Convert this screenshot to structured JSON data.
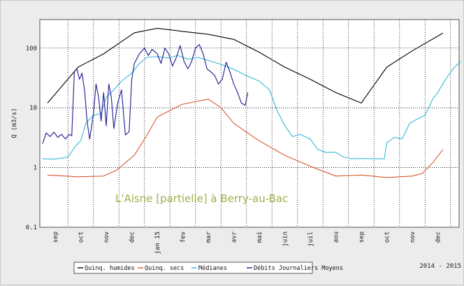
{
  "chart_data": {
    "type": "line",
    "title": "L'Aisne [partielle] à Berry-au-Bac",
    "ylabel": "Q (m3/s)",
    "xlabel": "",
    "yscale": "log",
    "ylim": [
      0.1,
      300
    ],
    "yticks": [
      "0.1",
      "1",
      "10",
      "100"
    ],
    "x_months": [
      "sep",
      "oct",
      "nov",
      "dec",
      "jan 15",
      "fev",
      "mar",
      "avr",
      "mai",
      "juin",
      "juil",
      "aou",
      "sep",
      "oct",
      "nov",
      "dec"
    ],
    "grid": true,
    "legend_position": "bottom-left",
    "season_label": "2014 - 2015",
    "series": [
      {
        "name": "Quinq. humides",
        "color": "#000000",
        "points": [
          [
            -0.3,
            12
          ],
          [
            0.9,
            48
          ],
          [
            1.9,
            80
          ],
          [
            3.1,
            180
          ],
          [
            4.0,
            215
          ],
          [
            5.0,
            190
          ],
          [
            6.0,
            170
          ],
          [
            7.0,
            140
          ],
          [
            8.0,
            85
          ],
          [
            9.0,
            48
          ],
          [
            10.0,
            30
          ],
          [
            11.0,
            18
          ],
          [
            12.0,
            12
          ],
          [
            13.0,
            48
          ],
          [
            14.0,
            90
          ],
          [
            15.2,
            178
          ]
        ]
      },
      {
        "name": "Quinq. secs",
        "color": "#d8582e",
        "points": [
          [
            -0.3,
            0.75
          ],
          [
            0.9,
            0.7
          ],
          [
            1.9,
            0.72
          ],
          [
            2.4,
            0.9
          ],
          [
            3.1,
            1.6
          ],
          [
            3.6,
            3.5
          ],
          [
            4.0,
            7.0
          ],
          [
            4.6,
            9.5
          ],
          [
            5.0,
            11.5
          ],
          [
            6.0,
            14.0
          ],
          [
            6.5,
            10
          ],
          [
            7.0,
            5.5
          ],
          [
            8.0,
            2.8
          ],
          [
            9.0,
            1.6
          ],
          [
            10.0,
            1.05
          ],
          [
            11.0,
            0.72
          ],
          [
            12.0,
            0.75
          ],
          [
            13.0,
            0.68
          ],
          [
            14.0,
            0.72
          ],
          [
            14.4,
            0.8
          ],
          [
            14.8,
            1.2
          ],
          [
            15.2,
            2.0
          ]
        ]
      },
      {
        "name": "Médianes",
        "color": "#35b8d8",
        "points": [
          [
            -0.5,
            1.4
          ],
          [
            0.0,
            1.38
          ],
          [
            0.5,
            1.5
          ],
          [
            0.8,
            2.3
          ],
          [
            1.0,
            2.8
          ],
          [
            1.2,
            5.5
          ],
          [
            1.5,
            7.5
          ],
          [
            1.8,
            8.0
          ],
          [
            2.0,
            15
          ],
          [
            2.3,
            20
          ],
          [
            2.6,
            28
          ],
          [
            3.0,
            38
          ],
          [
            3.3,
            55
          ],
          [
            3.6,
            70
          ],
          [
            4.0,
            72
          ],
          [
            4.4,
            68
          ],
          [
            4.8,
            75
          ],
          [
            5.2,
            65
          ],
          [
            5.6,
            70
          ],
          [
            6.0,
            62
          ],
          [
            6.4,
            55
          ],
          [
            6.8,
            48
          ],
          [
            7.2,
            40
          ],
          [
            7.6,
            33
          ],
          [
            8.0,
            28
          ],
          [
            8.4,
            20
          ],
          [
            8.7,
            9
          ],
          [
            9.0,
            5
          ],
          [
            9.3,
            3.3
          ],
          [
            9.6,
            3.6
          ],
          [
            10.0,
            3.0
          ],
          [
            10.3,
            2.0
          ],
          [
            10.6,
            1.8
          ],
          [
            11.0,
            1.8
          ],
          [
            11.3,
            1.5
          ],
          [
            11.6,
            1.4
          ],
          [
            12.0,
            1.42
          ],
          [
            12.5,
            1.4
          ],
          [
            12.9,
            1.4
          ],
          [
            13.0,
            2.6
          ],
          [
            13.3,
            3.2
          ],
          [
            13.6,
            3.0
          ],
          [
            13.9,
            5.5
          ],
          [
            14.2,
            6.5
          ],
          [
            14.5,
            7.5
          ],
          [
            14.8,
            14
          ],
          [
            15.0,
            18
          ],
          [
            15.3,
            30
          ],
          [
            15.6,
            45
          ],
          [
            15.9,
            60
          ]
        ]
      },
      {
        "name": "Débits Journaliers Moyens",
        "color": "#1c1a90",
        "points": [
          [
            -0.5,
            2.5
          ],
          [
            -0.35,
            3.8
          ],
          [
            -0.2,
            3.3
          ],
          [
            -0.05,
            3.9
          ],
          [
            0.1,
            3.2
          ],
          [
            0.25,
            3.6
          ],
          [
            0.4,
            3.0
          ],
          [
            0.55,
            3.6
          ],
          [
            0.65,
            3.4
          ],
          [
            0.75,
            40
          ],
          [
            0.85,
            45
          ],
          [
            0.95,
            30
          ],
          [
            1.05,
            38
          ],
          [
            1.15,
            20
          ],
          [
            1.25,
            6
          ],
          [
            1.35,
            3.0
          ],
          [
            1.5,
            8
          ],
          [
            1.6,
            25
          ],
          [
            1.7,
            15
          ],
          [
            1.8,
            6
          ],
          [
            1.9,
            18
          ],
          [
            2.0,
            5
          ],
          [
            2.1,
            25
          ],
          [
            2.2,
            15
          ],
          [
            2.3,
            4.5
          ],
          [
            2.45,
            12
          ],
          [
            2.6,
            20
          ],
          [
            2.75,
            3.5
          ],
          [
            2.9,
            4.0
          ],
          [
            3.0,
            30
          ],
          [
            3.1,
            55
          ],
          [
            3.3,
            80
          ],
          [
            3.5,
            100
          ],
          [
            3.65,
            75
          ],
          [
            3.8,
            95
          ],
          [
            4.0,
            80
          ],
          [
            4.15,
            55
          ],
          [
            4.3,
            100
          ],
          [
            4.45,
            80
          ],
          [
            4.6,
            50
          ],
          [
            4.75,
            70
          ],
          [
            4.9,
            110
          ],
          [
            5.05,
            60
          ],
          [
            5.2,
            45
          ],
          [
            5.35,
            60
          ],
          [
            5.5,
            100
          ],
          [
            5.65,
            115
          ],
          [
            5.8,
            80
          ],
          [
            5.95,
            45
          ],
          [
            6.1,
            40
          ],
          [
            6.25,
            35
          ],
          [
            6.4,
            25
          ],
          [
            6.55,
            30
          ],
          [
            6.7,
            58
          ],
          [
            6.85,
            40
          ],
          [
            7.0,
            25
          ],
          [
            7.15,
            18
          ],
          [
            7.3,
            12
          ],
          [
            7.45,
            11
          ],
          [
            7.55,
            18
          ]
        ]
      }
    ]
  }
}
